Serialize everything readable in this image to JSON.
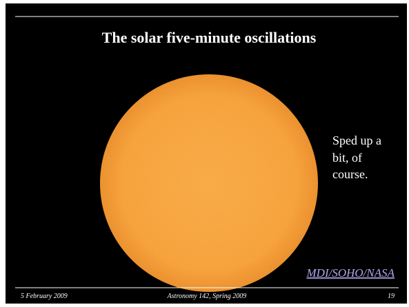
{
  "slide": {
    "title": "The solar five-minute oscillations",
    "note_lines": [
      "Sped up a",
      "bit, of",
      "course."
    ],
    "credit": "MDI/SOHO/NASA",
    "footer": {
      "date": "5 February 2009",
      "course": "Astronomy 142, Spring 2009",
      "page": "19"
    }
  }
}
